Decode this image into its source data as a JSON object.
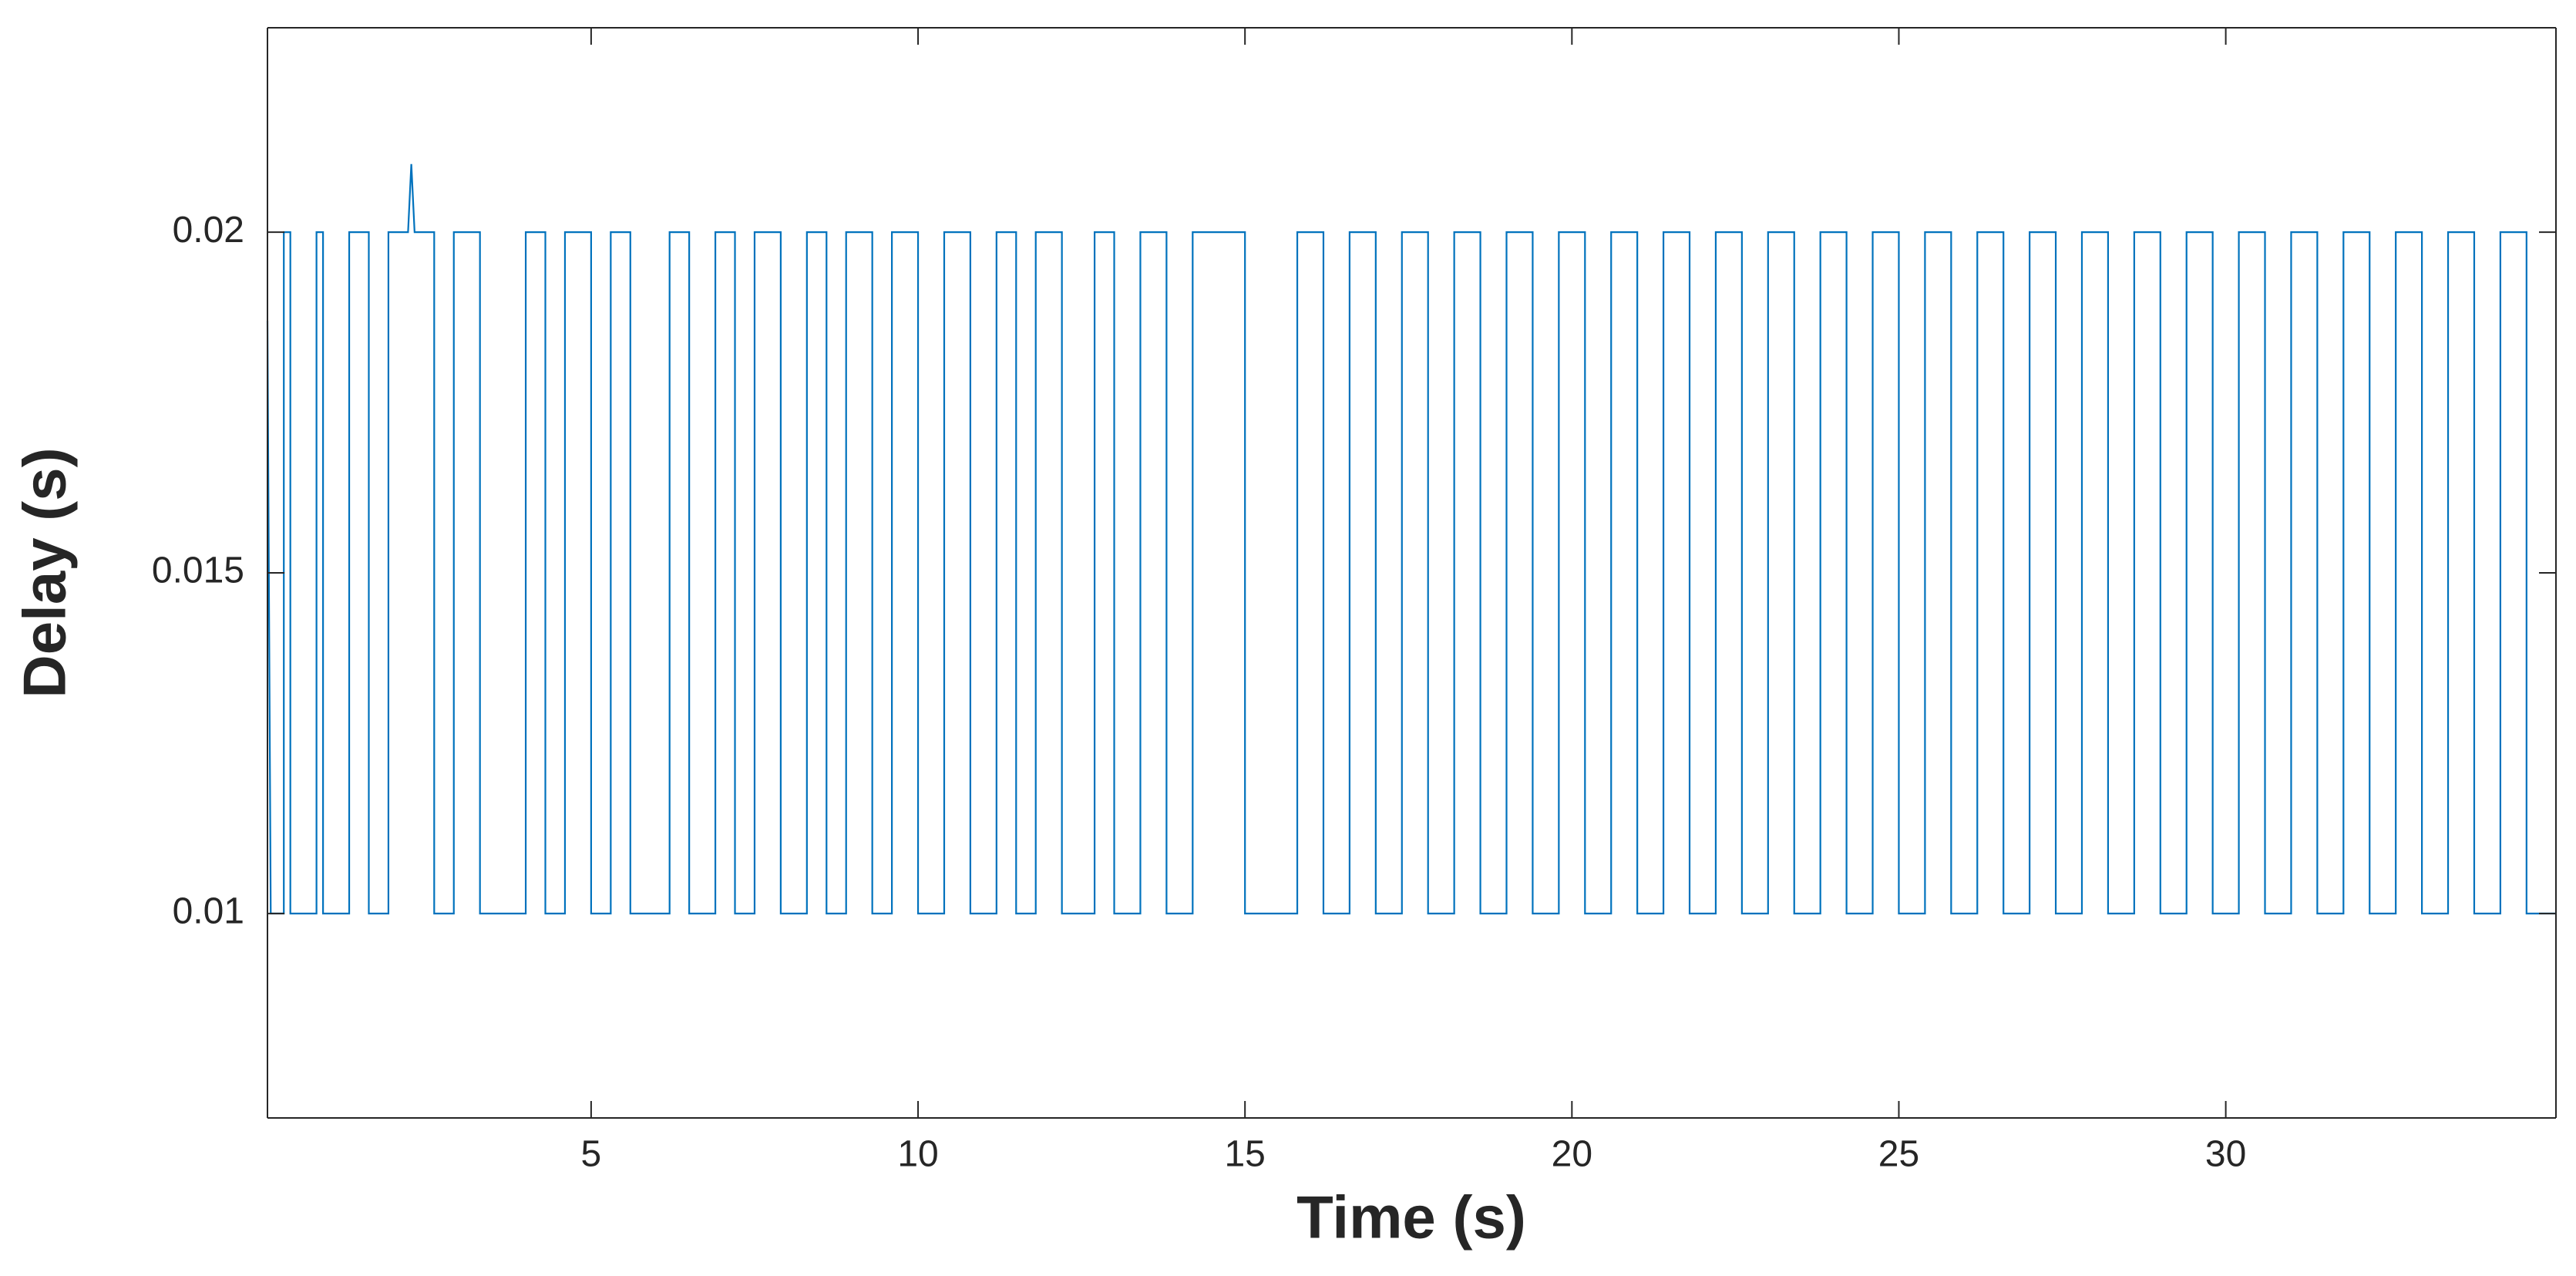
{
  "chart_data": {
    "type": "line",
    "xlabel": "Time (s)",
    "ylabel": "Delay (s)",
    "xlim": [
      0.05,
      35.05
    ],
    "ylim": [
      0.007,
      0.023
    ],
    "xticks": [
      5,
      10,
      15,
      20,
      25,
      30
    ],
    "yticks": [
      0.01,
      0.015,
      0.02
    ],
    "grid": false,
    "box": true,
    "series": [
      {
        "color": "#0072bd",
        "x": [
          0.05,
          0.1,
          0.3,
          0.3,
          0.4,
          0.4,
          0.8,
          0.8,
          0.9,
          0.9,
          1.3,
          1.3,
          1.6,
          1.6,
          1.9,
          1.9,
          2.2,
          2.25,
          2.3,
          2.6,
          2.6,
          2.9,
          2.9,
          3.3,
          3.3,
          4.0,
          4.0,
          4.3,
          4.3,
          4.6,
          4.6,
          5.0,
          5.0,
          5.3,
          5.3,
          5.6,
          5.6,
          6.2,
          6.2,
          6.5,
          6.5,
          6.9,
          6.9,
          7.2,
          7.2,
          7.5,
          7.5,
          7.9,
          7.9,
          8.3,
          8.3,
          8.6,
          8.6,
          8.9,
          8.9,
          9.3,
          9.3,
          9.6,
          9.6,
          10.0,
          10.0,
          10.4,
          10.4,
          10.8,
          10.8,
          11.2,
          11.2,
          11.5,
          11.5,
          11.8,
          11.8,
          12.2,
          12.2,
          12.7,
          12.7,
          13.0,
          13.0,
          13.4,
          13.4,
          13.8,
          13.8,
          14.2,
          14.2,
          15.0,
          15.0,
          15.8,
          15.8,
          16.2,
          16.2,
          16.6,
          16.6,
          17.0,
          17.0,
          17.4,
          17.4,
          17.8,
          17.8,
          18.2,
          18.2,
          18.6,
          18.6,
          19.0,
          19.0,
          19.4,
          19.4,
          19.8,
          19.8,
          20.2,
          20.2,
          20.6,
          20.6,
          21.0,
          21.0,
          21.4,
          21.4,
          21.8,
          21.8,
          22.2,
          22.2,
          22.6,
          22.6,
          23.0,
          23.0,
          23.4,
          23.4,
          23.8,
          23.8,
          24.2,
          24.2,
          24.6,
          24.6,
          25.0,
          25.0,
          25.4,
          25.4,
          25.8,
          25.8,
          26.2,
          26.2,
          26.6,
          26.6,
          27.0,
          27.0,
          27.4,
          27.4,
          27.8,
          27.8,
          28.2,
          28.2,
          28.6,
          28.6,
          29.0,
          29.0,
          29.4,
          29.4,
          29.8,
          29.8,
          30.2,
          30.2,
          30.6,
          30.6,
          31.0,
          31.0,
          31.4,
          31.4,
          31.8,
          31.8,
          32.2,
          32.2,
          32.6,
          32.6,
          33.0,
          33.0,
          33.4,
          33.4,
          33.8,
          33.8,
          34.2,
          34.2,
          34.6,
          34.6,
          35.05
        ],
        "values": [
          0.0187,
          0.01,
          0.01,
          0.02,
          0.02,
          0.01,
          0.01,
          0.02,
          0.02,
          0.01,
          0.01,
          0.02,
          0.02,
          0.01,
          0.01,
          0.02,
          0.02,
          0.021,
          0.02,
          0.02,
          0.01,
          0.01,
          0.02,
          0.02,
          0.01,
          0.01,
          0.02,
          0.02,
          0.01,
          0.01,
          0.02,
          0.02,
          0.01,
          0.01,
          0.02,
          0.02,
          0.01,
          0.01,
          0.02,
          0.02,
          0.01,
          0.01,
          0.02,
          0.02,
          0.01,
          0.01,
          0.02,
          0.02,
          0.01,
          0.01,
          0.02,
          0.02,
          0.01,
          0.01,
          0.02,
          0.02,
          0.01,
          0.01,
          0.02,
          0.02,
          0.01,
          0.01,
          0.02,
          0.02,
          0.01,
          0.01,
          0.02,
          0.02,
          0.01,
          0.01,
          0.02,
          0.02,
          0.01,
          0.01,
          0.02,
          0.02,
          0.01,
          0.01,
          0.02,
          0.02,
          0.01,
          0.01,
          0.02,
          0.02,
          0.01,
          0.01,
          0.02,
          0.02,
          0.01,
          0.01,
          0.02,
          0.02,
          0.01,
          0.01,
          0.02,
          0.02,
          0.01,
          0.01,
          0.02,
          0.02,
          0.01,
          0.01,
          0.02,
          0.02,
          0.01,
          0.01,
          0.02,
          0.02,
          0.01,
          0.01,
          0.02,
          0.02,
          0.01,
          0.01,
          0.02,
          0.02,
          0.01,
          0.01,
          0.02,
          0.02,
          0.01,
          0.01,
          0.02,
          0.02,
          0.01,
          0.01,
          0.02,
          0.02,
          0.01,
          0.01,
          0.02,
          0.02,
          0.01,
          0.01,
          0.02,
          0.02,
          0.01,
          0.01,
          0.02,
          0.02,
          0.01,
          0.01,
          0.02,
          0.02,
          0.01,
          0.01,
          0.02,
          0.02,
          0.01,
          0.01,
          0.02,
          0.02,
          0.01,
          0.01,
          0.02,
          0.02,
          0.01,
          0.01,
          0.02,
          0.02,
          0.01,
          0.01,
          0.02,
          0.02,
          0.01,
          0.01,
          0.02,
          0.02,
          0.01,
          0.01,
          0.02,
          0.02,
          0.01,
          0.01,
          0.02,
          0.02,
          0.01,
          0.01,
          0.02,
          0.02,
          0.01,
          0.01
        ]
      }
    ]
  }
}
